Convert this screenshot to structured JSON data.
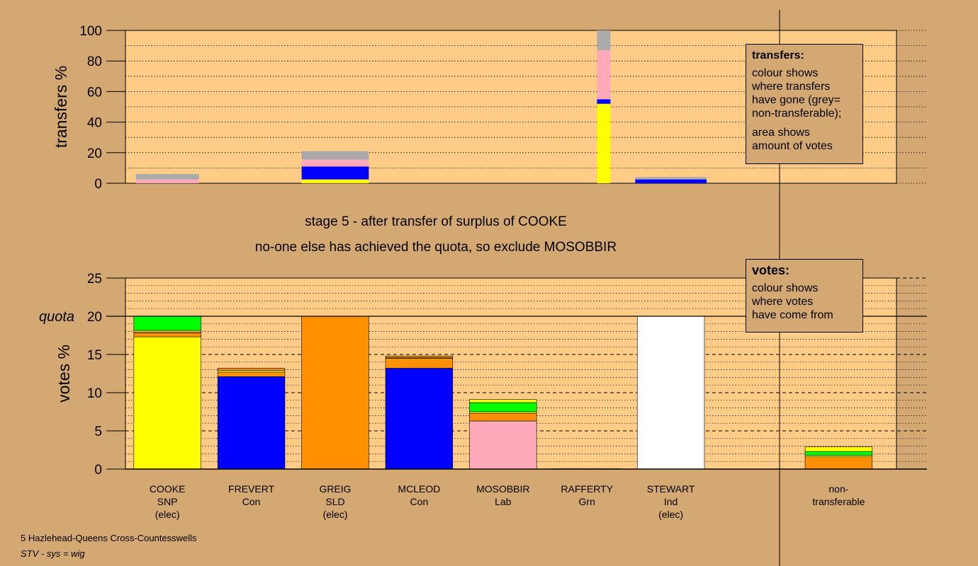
{
  "colors": {
    "background": "#D4A872",
    "plot_bg": "#FFCC88",
    "SNP": "#FFFF00",
    "Con": "#0000FF",
    "SLD": "#FF9000",
    "Lab": "#FFAABB",
    "Grn": "#00FF00",
    "Ind": "#FFFFFF",
    "nontransferable": "#AAAAAA"
  },
  "stage_text": {
    "line1": "stage 5 - after transfer of surplus of COOKE",
    "line2": "no-one else has achieved the quota, so exclude MOSOBBIR"
  },
  "legend_transfers": {
    "title": "transfers:",
    "lines_a": [
      "colour shows",
      "where transfers",
      "have gone (grey=",
      "non-transferable);"
    ],
    "lines_b": [
      "area shows",
      "amount of votes"
    ]
  },
  "legend_votes": {
    "title": "votes:",
    "lines": [
      "colour shows",
      "where votes",
      "have come from"
    ]
  },
  "footer": {
    "line1": "5 Hazlehead-Queens Cross-Countesswells",
    "line2": "STV - sys = wig"
  },
  "chart_data": [
    {
      "type": "bar",
      "name": "transfers",
      "ylabel": "transfers %",
      "ylim": [
        0,
        100
      ],
      "yticks": [
        0,
        20,
        40,
        60,
        80,
        100
      ],
      "grid": "dotted",
      "legend": "top-right",
      "bars": [
        {
          "slot": 0,
          "width_slots": 0.75,
          "segments": [
            {
              "party": "Lab",
              "value": 2.5
            },
            {
              "party": "nontransferable",
              "value": 3.5
            }
          ]
        },
        {
          "slot": 2,
          "width_slots": 0.8,
          "segments": [
            {
              "party": "SNP",
              "value": 2.5
            },
            {
              "party": "Con",
              "value": 8.5
            },
            {
              "party": "Lab",
              "value": 4.5
            },
            {
              "party": "nontransferable",
              "value": 5.5
            }
          ]
        },
        {
          "slot": 5.2,
          "width_slots": 0.16,
          "segments": [
            {
              "party": "SNP",
              "value": 52
            },
            {
              "party": "Con",
              "value": 3
            },
            {
              "party": "Lab",
              "value": 32
            },
            {
              "party": "nontransferable",
              "value": 13
            }
          ]
        },
        {
          "slot": 6,
          "width_slots": 0.85,
          "segments": [
            {
              "party": "Con",
              "value": 2.5
            },
            {
              "party": "nontransferable",
              "value": 1.5
            }
          ]
        }
      ]
    },
    {
      "type": "bar",
      "name": "votes",
      "ylabel": "votes %",
      "ylim": [
        0,
        25
      ],
      "yticks": [
        0,
        5,
        10,
        15,
        20,
        25
      ],
      "quota": 20,
      "quota_label": "quota",
      "grid": "dashed",
      "legend": "top-right",
      "categories": [
        {
          "name": "COOKE",
          "party": "SNP",
          "note": "(elec)"
        },
        {
          "name": "FREVERT",
          "party": "Con",
          "note": ""
        },
        {
          "name": "GREIG",
          "party": "SLD",
          "note": "(elec)"
        },
        {
          "name": "MCLEOD",
          "party": "Con",
          "note": ""
        },
        {
          "name": "MOSOBBIR",
          "party": "Lab",
          "note": ""
        },
        {
          "name": "RAFFERTY",
          "party": "Grn",
          "note": ""
        },
        {
          "name": "STEWART",
          "party": "Ind",
          "note": "(elec)"
        },
        {
          "name": "non-",
          "party": "transferable",
          "note": ""
        }
      ],
      "bars": [
        {
          "slot": 0,
          "segments": [
            {
              "party": "SNP",
              "value": 17.3
            },
            {
              "party": "SLD",
              "value": 0.5
            },
            {
              "party": "Lab",
              "value": 0.15
            },
            {
              "party": "SNP",
              "value": 0.2
            },
            {
              "party": "Grn",
              "value": 1.85
            }
          ]
        },
        {
          "slot": 1,
          "segments": [
            {
              "party": "Con",
              "value": 12.1
            },
            {
              "party": "SLD",
              "value": 0.6
            },
            {
              "party": "SNP",
              "value": 0.2
            },
            {
              "party": "SLD",
              "value": 0.3
            }
          ]
        },
        {
          "slot": 2,
          "segments": [
            {
              "party": "SLD",
              "value": 20
            }
          ]
        },
        {
          "slot": 3,
          "segments": [
            {
              "party": "Con",
              "value": 13.2
            },
            {
              "party": "SLD",
              "value": 1.3
            },
            {
              "party": "SNP",
              "value": 0.1
            },
            {
              "party": "SLD",
              "value": 0.2
            }
          ]
        },
        {
          "slot": 4,
          "segments": [
            {
              "party": "Lab",
              "value": 6.3
            },
            {
              "party": "SLD",
              "value": 1.0
            },
            {
              "party": "SNP",
              "value": 0.2
            },
            {
              "party": "Grn",
              "value": 1.2
            },
            {
              "party": "SNP",
              "value": 0.4
            }
          ]
        },
        {
          "slot": 5,
          "segments": [
            {
              "party": "Grn",
              "value": 0.05
            }
          ]
        },
        {
          "slot": 6,
          "segments": [
            {
              "party": "Ind",
              "value": 20
            }
          ]
        },
        {
          "slot": 8,
          "segments": [
            {
              "party": "SLD",
              "value": 1.6
            },
            {
              "party": "SNP",
              "value": 0.2
            },
            {
              "party": "Grn",
              "value": 0.5
            },
            {
              "party": "SNP",
              "value": 0.6
            }
          ]
        }
      ]
    }
  ]
}
